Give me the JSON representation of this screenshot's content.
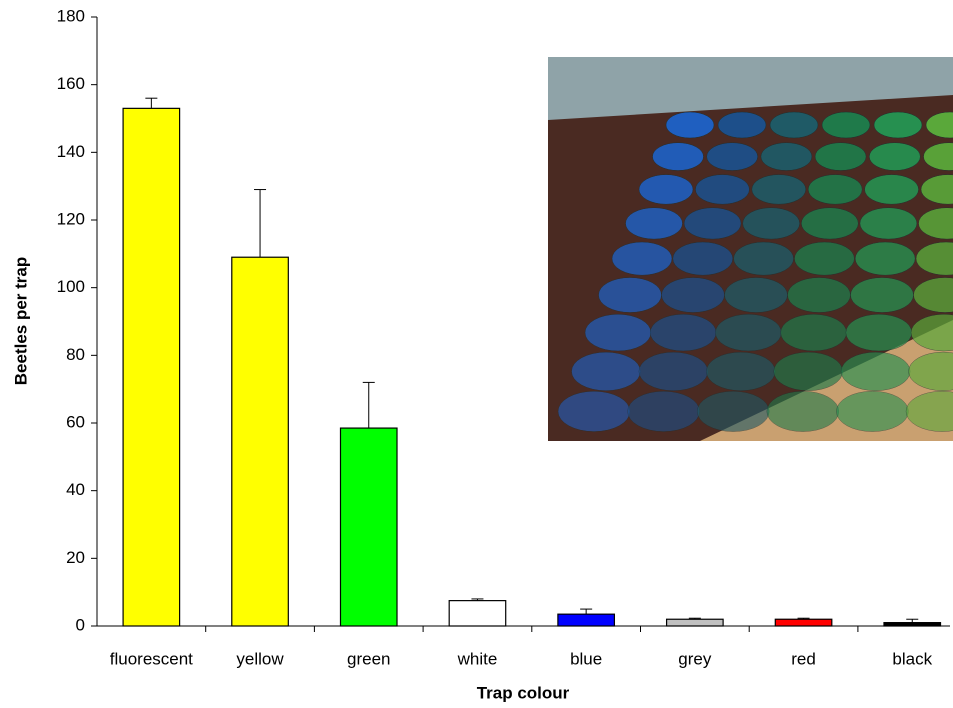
{
  "chart_data": {
    "type": "bar",
    "x_label": "Trap colour",
    "y_label": "Beetles per trap",
    "categories": [
      "fluorescent",
      "yellow",
      "green",
      "white",
      "blue",
      "grey",
      "red",
      "black"
    ],
    "values": [
      153,
      109,
      58.5,
      7.5,
      3.5,
      2,
      2,
      1
    ],
    "errors": [
      3,
      20,
      13.5,
      0.5,
      1.5,
      0.3,
      0.3,
      1
    ],
    "colors": [
      "#ffff00",
      "#ffff00",
      "#00ff00",
      "#ffffff",
      "#0000ff",
      "#c0c0c0",
      "#ff0000",
      "#000000"
    ],
    "ylim": [
      0,
      180
    ],
    "yticks": [
      0,
      20,
      40,
      60,
      80,
      100,
      120,
      140,
      160,
      180
    ]
  }
}
